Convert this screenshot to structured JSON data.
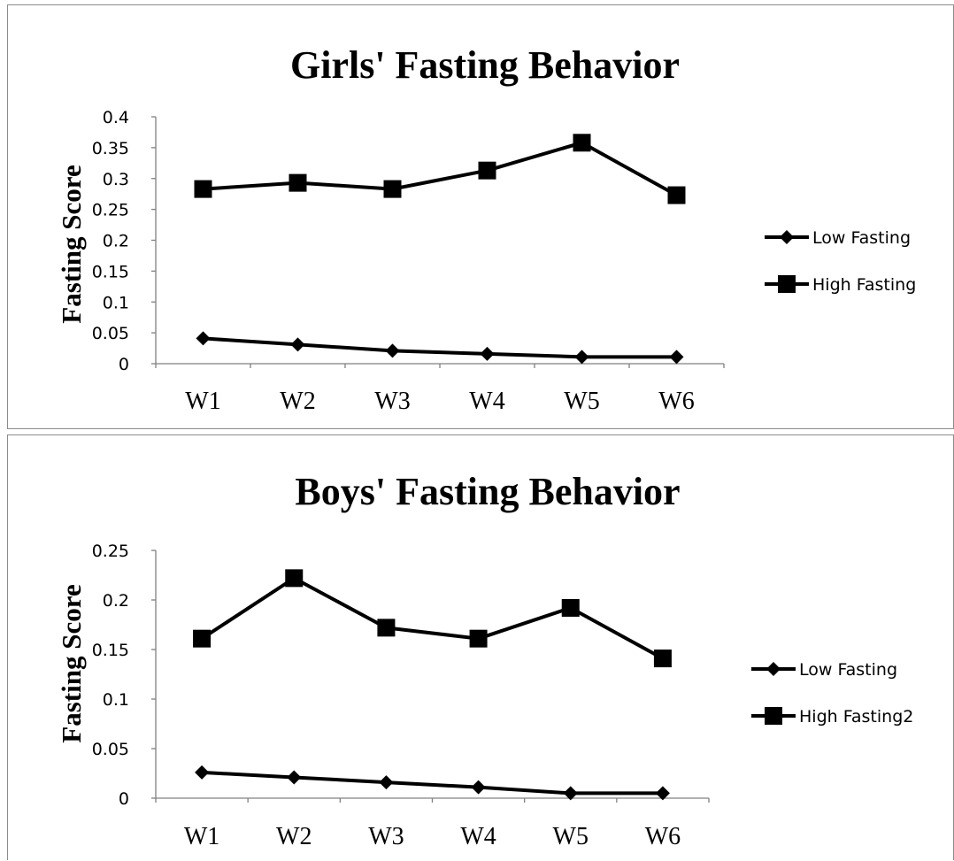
{
  "chart_data": [
    {
      "type": "line",
      "title": "Girls' Fasting Behavior",
      "xlabel": "",
      "ylabel": "Fasting Score",
      "categories": [
        "W1",
        "W2",
        "W3",
        "W4",
        "W5",
        "W6"
      ],
      "ylim": [
        0,
        0.4
      ],
      "yticks": [
        "0",
        "0.05",
        "0.1",
        "0.15",
        "0.2",
        "0.25",
        "0.3",
        "0.35",
        "0.4"
      ],
      "grid": false,
      "legend": "right",
      "series": [
        {
          "name": "Low Fasting",
          "marker": "diamond",
          "color": "#000000",
          "values": [
            0.041,
            0.031,
            0.021,
            0.016,
            0.011,
            0.011
          ]
        },
        {
          "name": "High Fasting",
          "marker": "square",
          "color": "#000000",
          "values": [
            0.283,
            0.293,
            0.283,
            0.313,
            0.358,
            0.273
          ]
        }
      ]
    },
    {
      "type": "line",
      "title": "Boys' Fasting Behavior",
      "xlabel": "",
      "ylabel": "Fasting Score",
      "categories": [
        "W1",
        "W2",
        "W3",
        "W4",
        "W5",
        "W6"
      ],
      "ylim": [
        0,
        0.25
      ],
      "yticks": [
        "0",
        "0.05",
        "0.1",
        "0.15",
        "0.2",
        "0.25"
      ],
      "grid": false,
      "legend": "right",
      "series": [
        {
          "name": "Low Fasting",
          "marker": "diamond",
          "color": "#000000",
          "values": [
            0.026,
            0.021,
            0.016,
            0.011,
            0.005,
            0.005
          ]
        },
        {
          "name": "High Fasting2",
          "marker": "square",
          "color": "#000000",
          "values": [
            0.161,
            0.222,
            0.172,
            0.161,
            0.192,
            0.141
          ]
        }
      ]
    }
  ]
}
